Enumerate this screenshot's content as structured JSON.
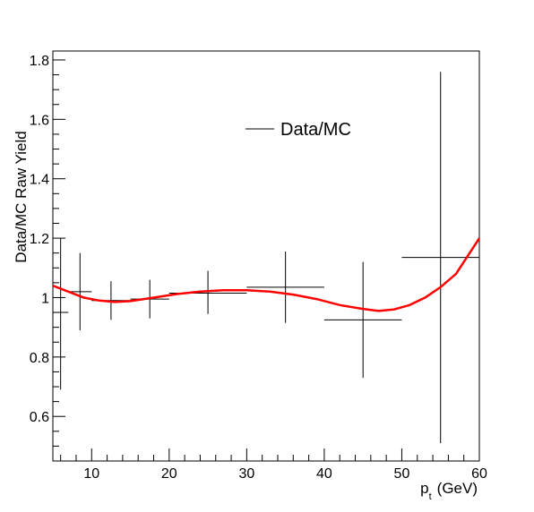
{
  "chart_data": {
    "type": "scatter",
    "title": "",
    "xlabel_main": "p",
    "xlabel_sub": "t",
    "xlabel_unit": "(GeV)",
    "ylabel": "Data/MC Raw Yield",
    "xlim": [
      5,
      60
    ],
    "ylim": [
      0.45,
      1.83
    ],
    "x_ticks": [
      10,
      20,
      30,
      40,
      50,
      60
    ],
    "y_ticks": [
      0.6,
      0.8,
      1,
      1.2,
      1.4,
      1.6,
      1.8
    ],
    "y_tick_labels": [
      "0.6",
      "0.8",
      "1",
      "1.2",
      "1.4",
      "1.6",
      "1.8"
    ],
    "grid": false,
    "legend_position": "upper-center",
    "series": [
      {
        "name": "Data/MC",
        "color": "#000000",
        "points": [
          {
            "x": 6,
            "xlo": 5,
            "xhi": 7,
            "y": 0.95,
            "ylo": 0.69,
            "yhi": 1.2
          },
          {
            "x": 8.5,
            "xlo": 7,
            "xhi": 10,
            "y": 1.02,
            "ylo": 0.89,
            "yhi": 1.15
          },
          {
            "x": 12.5,
            "xlo": 10,
            "xhi": 15,
            "y": 0.99,
            "ylo": 0.925,
            "yhi": 1.055
          },
          {
            "x": 17.5,
            "xlo": 15,
            "xhi": 20,
            "y": 0.995,
            "ylo": 0.93,
            "yhi": 1.06
          },
          {
            "x": 25,
            "xlo": 20,
            "xhi": 30,
            "y": 1.015,
            "ylo": 0.945,
            "yhi": 1.09
          },
          {
            "x": 35,
            "xlo": 30,
            "xhi": 40,
            "y": 1.035,
            "ylo": 0.915,
            "yhi": 1.155
          },
          {
            "x": 45,
            "xlo": 40,
            "xhi": 50,
            "y": 0.925,
            "ylo": 0.73,
            "yhi": 1.12
          },
          {
            "x": 55,
            "xlo": 50,
            "xhi": 60,
            "y": 1.135,
            "ylo": 0.51,
            "yhi": 1.76
          }
        ]
      }
    ],
    "fit": {
      "color": "#ff0000",
      "points": [
        [
          5,
          1.04
        ],
        [
          7,
          1.02
        ],
        [
          9,
          1.0
        ],
        [
          11,
          0.99
        ],
        [
          13,
          0.985
        ],
        [
          15,
          0.988
        ],
        [
          18,
          1.0
        ],
        [
          21,
          1.012
        ],
        [
          24,
          1.02
        ],
        [
          27,
          1.025
        ],
        [
          30,
          1.025
        ],
        [
          33,
          1.02
        ],
        [
          36,
          1.01
        ],
        [
          39,
          0.995
        ],
        [
          42,
          0.975
        ],
        [
          45,
          0.962
        ],
        [
          47,
          0.955
        ],
        [
          49,
          0.96
        ],
        [
          51,
          0.975
        ],
        [
          53,
          1.0
        ],
        [
          55,
          1.035
        ],
        [
          57,
          1.08
        ],
        [
          59,
          1.16
        ],
        [
          60,
          1.2
        ]
      ]
    }
  }
}
